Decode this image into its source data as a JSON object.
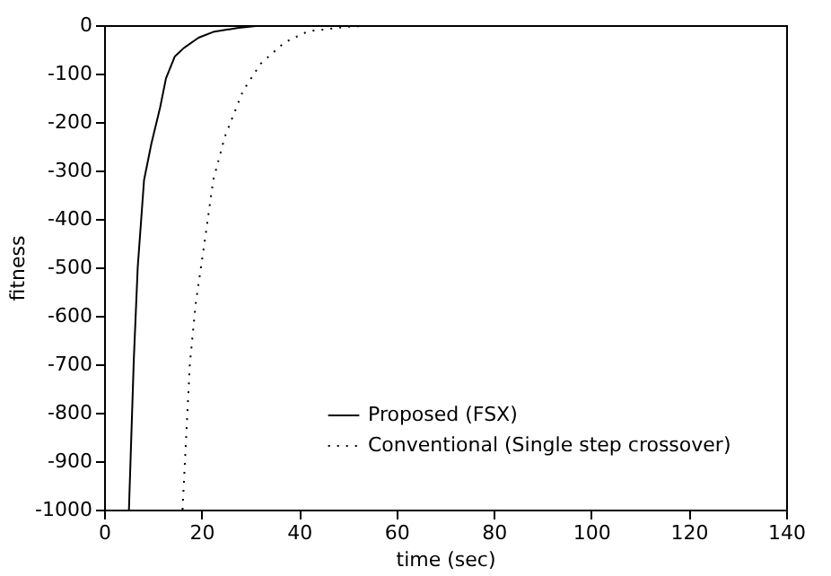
{
  "chart_data": {
    "type": "line",
    "xlabel": "time (sec)",
    "ylabel": "fitness",
    "xlim": [
      0,
      140
    ],
    "ylim": [
      -1000,
      0
    ],
    "xticks": [
      0,
      20,
      40,
      60,
      80,
      100,
      120,
      140
    ],
    "yticks": [
      -1000,
      -900,
      -800,
      -700,
      -600,
      -500,
      -400,
      -300,
      -200,
      -100,
      0
    ],
    "grid": false,
    "legend": "bottom right",
    "series": [
      {
        "name": "Proposed (FSX)",
        "color": "#000000",
        "line_style": "solid",
        "x": [
          5.1,
          6.1,
          6.9,
          8.2,
          9.7,
          11.5,
          12.7,
          14.5,
          16.4,
          19.4,
          22.4,
          27.3,
          32,
          40,
          140
        ],
        "values": [
          -1000,
          -690,
          -500,
          -320,
          -245,
          -170,
          -110,
          -65,
          -47,
          -26,
          -14,
          -6,
          -1,
          0,
          0
        ]
      },
      {
        "name": "Conventional (Single step crossover)",
        "color": "#000000",
        "line_style": "dotted",
        "x": [
          16.1,
          17.6,
          18.8,
          20.6,
          22.4,
          24.8,
          28.5,
          32.1,
          37,
          41.8,
          49.1,
          56.4,
          140
        ],
        "values": [
          -1000,
          -700,
          -575,
          -450,
          -320,
          -230,
          -136,
          -80,
          -36,
          -13,
          -4,
          0,
          0
        ]
      }
    ]
  }
}
